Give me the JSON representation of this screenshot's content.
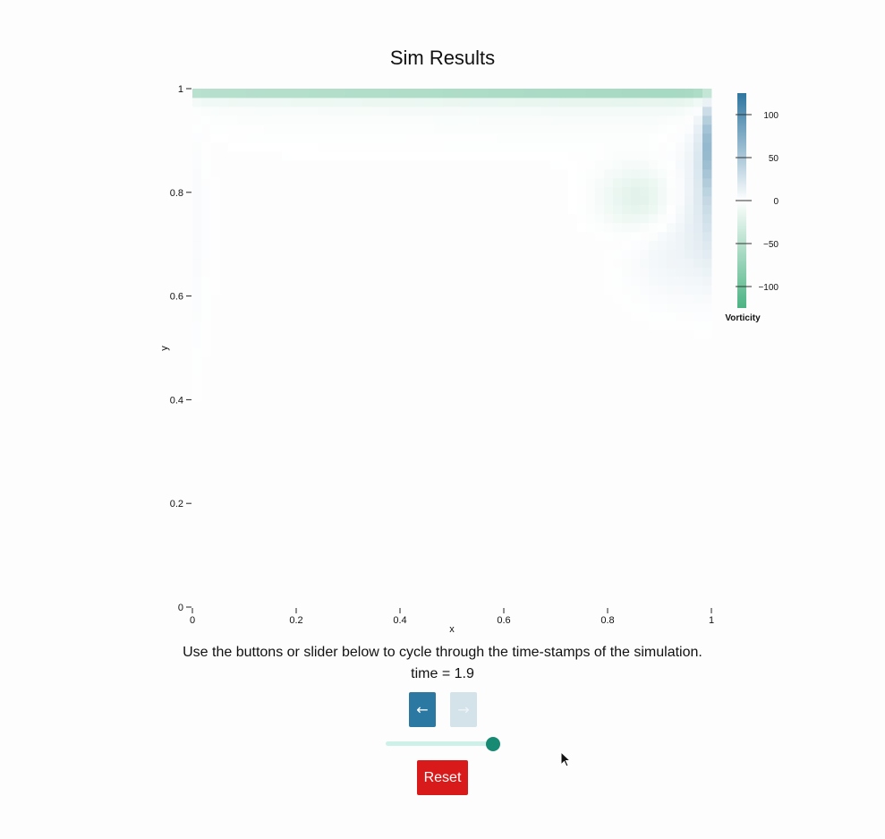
{
  "chart_data": {
    "type": "heatmap",
    "title": "Sim Results",
    "xlabel": "x",
    "ylabel": "y",
    "xlim": [
      0,
      1
    ],
    "ylim": [
      0,
      1
    ],
    "x_ticks": [
      "0",
      "0.2",
      "0.4",
      "0.6",
      "0.8",
      "1"
    ],
    "y_ticks": [
      "0",
      "0.2",
      "0.4",
      "0.6",
      "0.8",
      "1"
    ],
    "colorbar": {
      "label": "Vorticity",
      "range": [
        -125,
        125
      ],
      "ticks": [
        100,
        50,
        0,
        -50,
        -100
      ],
      "tick_labels": [
        "100",
        "50",
        "0",
        "−50",
        "−100"
      ],
      "colors": {
        "positive": "#2f76a0",
        "zero": "#ffffff",
        "negative": "#4cb384"
      }
    },
    "field_description": "lid-driven cavity vorticity; strong negative band along top lid, positive along right wall near top, negative vortex core near x=0.85,y=0.8"
  },
  "controls": {
    "instructions": "Use the buttons or slider below to cycle through the time-stamps of the simulation.",
    "time_text": "time = 1.9",
    "prev_icon": "←",
    "next_icon": "→",
    "slider_value_fraction": 1.0,
    "reset_label": "Reset"
  }
}
